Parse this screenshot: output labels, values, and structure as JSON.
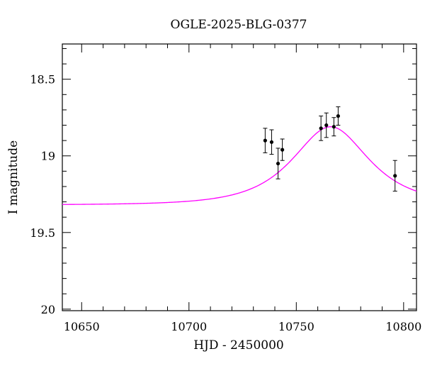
{
  "chart_data": {
    "type": "scatter",
    "title": "OGLE-2025-BLG-0377",
    "xlabel": "HJD - 2450000",
    "ylabel": "I magnitude",
    "xlim": [
      10641,
      10806
    ],
    "ylim": [
      20.01,
      18.27
    ],
    "y_inverted": true,
    "x_ticks": [
      10650,
      10700,
      10750,
      10800
    ],
    "x_tick_labels": [
      "10650",
      "10700",
      "10750",
      "10800"
    ],
    "y_ticks": [
      18.5,
      19,
      19.5,
      20
    ],
    "y_tick_labels": [
      "18.5",
      "19",
      "19.5",
      "20"
    ],
    "grid": false,
    "series": [
      {
        "kind": "points_with_errorbars",
        "color": "#000000",
        "points": [
          {
            "x": 10735.5,
            "y": 18.9,
            "err": 0.08
          },
          {
            "x": 10738.5,
            "y": 18.91,
            "err": 0.08
          },
          {
            "x": 10741.5,
            "y": 19.05,
            "err": 0.1
          },
          {
            "x": 10743.5,
            "y": 18.96,
            "err": 0.07
          },
          {
            "x": 10761.5,
            "y": 18.82,
            "err": 0.08
          },
          {
            "x": 10764.0,
            "y": 18.8,
            "err": 0.08
          },
          {
            "x": 10767.5,
            "y": 18.81,
            "err": 0.06
          },
          {
            "x": 10769.5,
            "y": 18.74,
            "err": 0.06
          },
          {
            "x": 10796.0,
            "y": 19.13,
            "err": 0.1
          }
        ]
      },
      {
        "kind": "model_curve",
        "color": "#ff00ff",
        "model": {
          "type": "paczynski",
          "t0": 10766,
          "tE": 25,
          "u0": 0.75,
          "I_base": 19.32
        }
      }
    ]
  }
}
